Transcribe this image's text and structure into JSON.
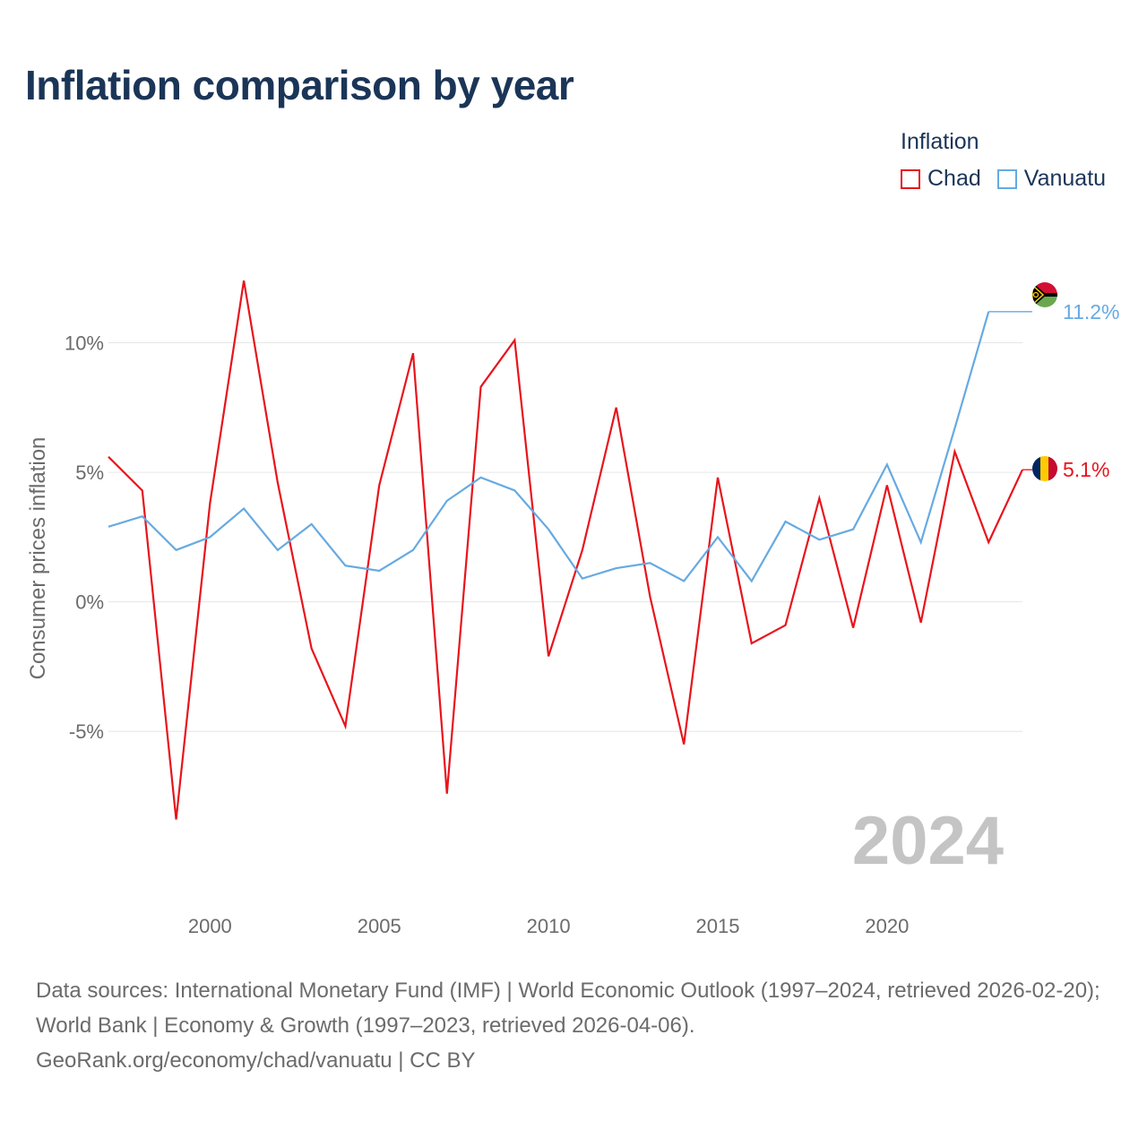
{
  "title": "Inflation comparison by year",
  "legend": {
    "title": "Inflation",
    "items": [
      {
        "name": "Chad",
        "color": "#e8141c"
      },
      {
        "name": "Vanuatu",
        "color": "#66aae2"
      }
    ]
  },
  "footer": {
    "sources": "Data sources: International Monetary Fund (IMF) | World Economic Outlook (1997–2024, retrieved 2026-02-20); World Bank | Economy & Growth (1997–2023, retrieved 2026-04-06).",
    "credit": "GeoRank.org/economy/chad/vanuatu | CC BY"
  },
  "chart_data": {
    "type": "line",
    "title": "Inflation comparison by year",
    "xlabel": "",
    "ylabel": "Consumer prices inflation",
    "xlim": [
      1997,
      2024
    ],
    "ylim": [
      -9.8,
      13.2
    ],
    "xticks": [
      2000,
      2005,
      2010,
      2015,
      2020
    ],
    "xtick_labels": [
      "2000",
      "2005",
      "2010",
      "2015",
      "2020"
    ],
    "yticks": [
      -5,
      0,
      5,
      10
    ],
    "ytick_labels": [
      "-5%",
      "0%",
      "5%",
      "10%"
    ],
    "grid": true,
    "legend_position": "top-right",
    "year_watermark": "2024",
    "series": [
      {
        "name": "Chad",
        "color": "#e8141c",
        "x": [
          1997,
          1998,
          1999,
          2000,
          2001,
          2002,
          2003,
          2004,
          2005,
          2006,
          2007,
          2008,
          2009,
          2010,
          2011,
          2012,
          2013,
          2014,
          2015,
          2016,
          2017,
          2018,
          2019,
          2020,
          2021,
          2022,
          2023,
          2024
        ],
        "values": [
          5.6,
          4.3,
          -8.4,
          3.8,
          12.4,
          4.6,
          -1.8,
          -4.8,
          4.5,
          9.6,
          -7.4,
          8.3,
          10.1,
          -2.1,
          2.0,
          7.5,
          0.2,
          -5.5,
          4.8,
          -1.6,
          -0.9,
          4.0,
          -1.0,
          4.5,
          -0.8,
          5.8,
          2.3,
          5.1
        ],
        "end_label": "5.1%"
      },
      {
        "name": "Vanuatu",
        "color": "#66aae2",
        "x": [
          1997,
          1998,
          1999,
          2000,
          2001,
          2002,
          2003,
          2004,
          2005,
          2006,
          2007,
          2008,
          2009,
          2010,
          2011,
          2012,
          2013,
          2014,
          2015,
          2016,
          2017,
          2018,
          2019,
          2020,
          2021,
          2022,
          2023
        ],
        "values": [
          2.9,
          3.3,
          2.0,
          2.5,
          3.6,
          2.0,
          3.0,
          1.4,
          1.2,
          2.0,
          3.9,
          4.8,
          4.3,
          2.8,
          0.9,
          1.3,
          1.5,
          0.8,
          2.5,
          0.8,
          3.1,
          2.4,
          2.8,
          5.3,
          2.3,
          6.7,
          11.2
        ],
        "end_label": "11.2%"
      }
    ]
  }
}
